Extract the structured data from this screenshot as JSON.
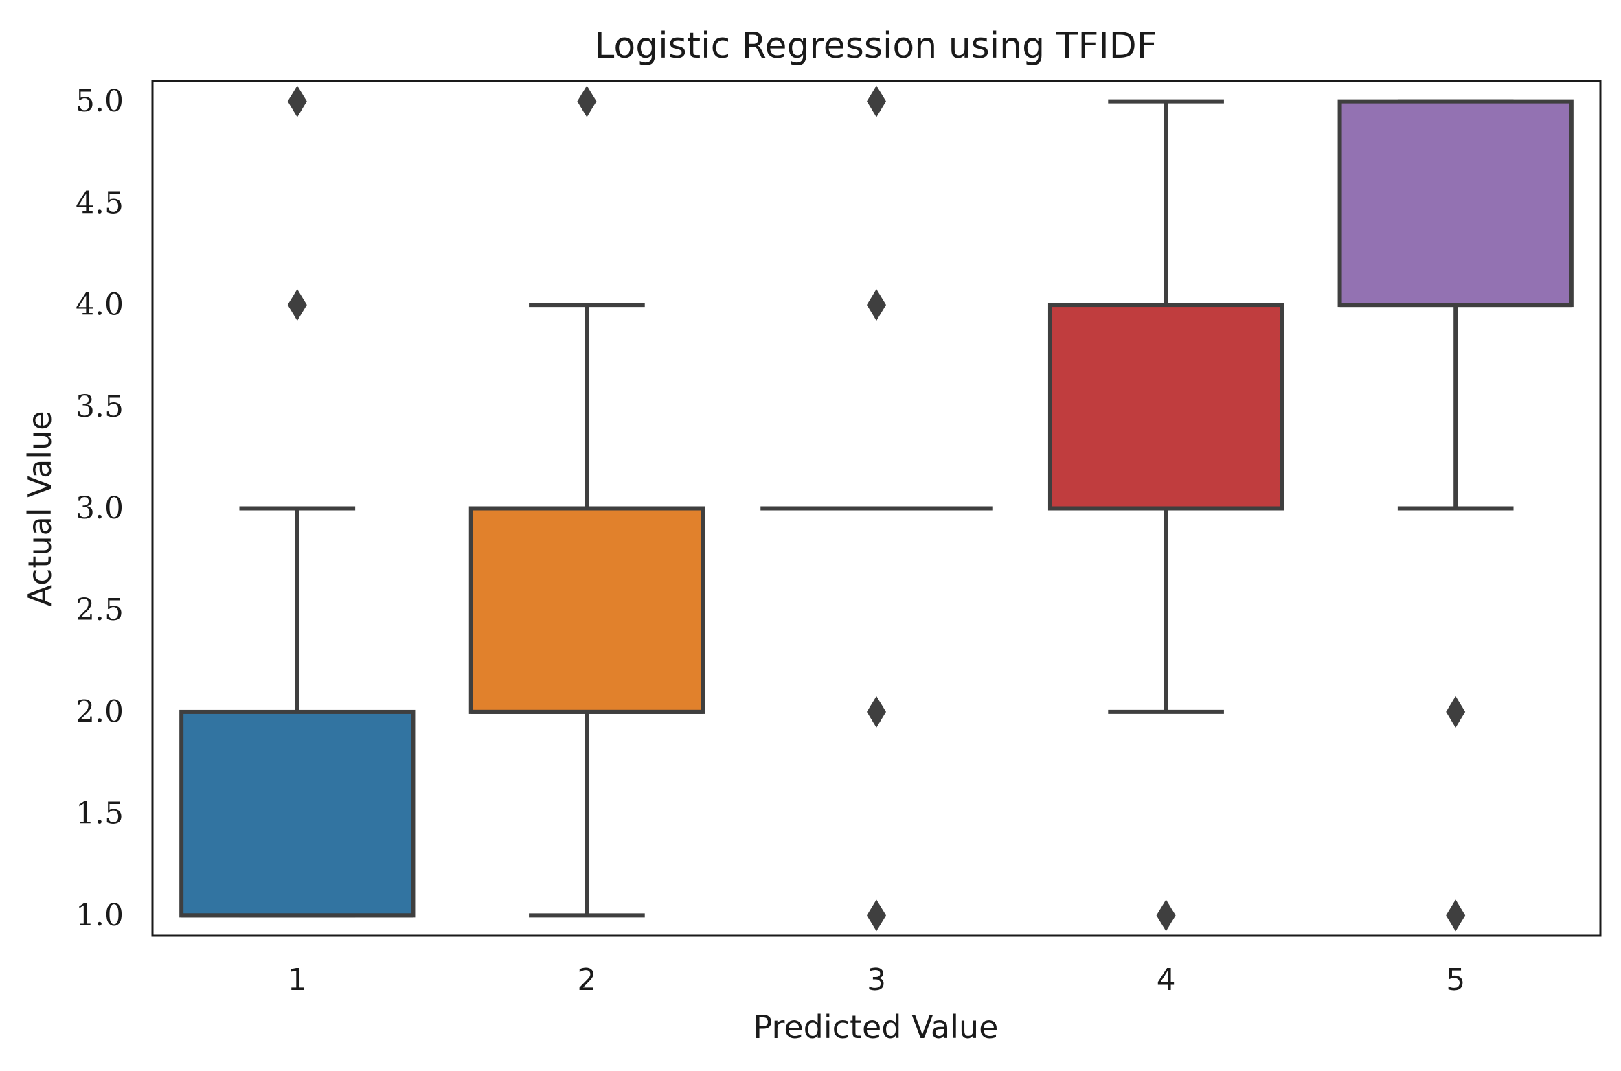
{
  "chart_data": {
    "type": "box",
    "title": "Logistic Regression using TFIDF",
    "xlabel": "Predicted Value",
    "ylabel": "Actual Value",
    "categories": [
      "1",
      "2",
      "3",
      "4",
      "5"
    ],
    "ylim": [
      0.9,
      5.1
    ],
    "yticks": [
      1.0,
      1.5,
      2.0,
      2.5,
      3.0,
      3.5,
      4.0,
      4.5,
      5.0
    ],
    "ytick_labels": [
      "1.0",
      "1.5",
      "2.0",
      "2.5",
      "3.0",
      "3.5",
      "4.0",
      "4.5",
      "5.0"
    ],
    "grid": false,
    "boxes": [
      {
        "category": "1",
        "q1": 1.0,
        "median": 1.0,
        "q3": 2.0,
        "whisker_low": 1.0,
        "whisker_high": 3.0,
        "outliers": [
          4.0,
          5.0
        ],
        "color": "#3274a1"
      },
      {
        "category": "2",
        "q1": 2.0,
        "median": 2.0,
        "q3": 3.0,
        "whisker_low": 1.0,
        "whisker_high": 4.0,
        "outliers": [
          5.0
        ],
        "color": "#e1812c"
      },
      {
        "category": "3",
        "q1": 3.0,
        "median": 3.0,
        "q3": 3.0,
        "whisker_low": 3.0,
        "whisker_high": 3.0,
        "outliers": [
          1.0,
          2.0,
          4.0,
          5.0
        ],
        "color": "#3a923a"
      },
      {
        "category": "4",
        "q1": 3.0,
        "median": 3.0,
        "q3": 4.0,
        "whisker_low": 2.0,
        "whisker_high": 5.0,
        "outliers": [
          1.0
        ],
        "color": "#c03d3e"
      },
      {
        "category": "5",
        "q1": 4.0,
        "median": 4.0,
        "q3": 5.0,
        "whisker_low": 3.0,
        "whisker_high": 5.0,
        "outliers": [
          1.0,
          2.0
        ],
        "color": "#9372b2"
      }
    ],
    "line_color": "#3f3f3f"
  }
}
